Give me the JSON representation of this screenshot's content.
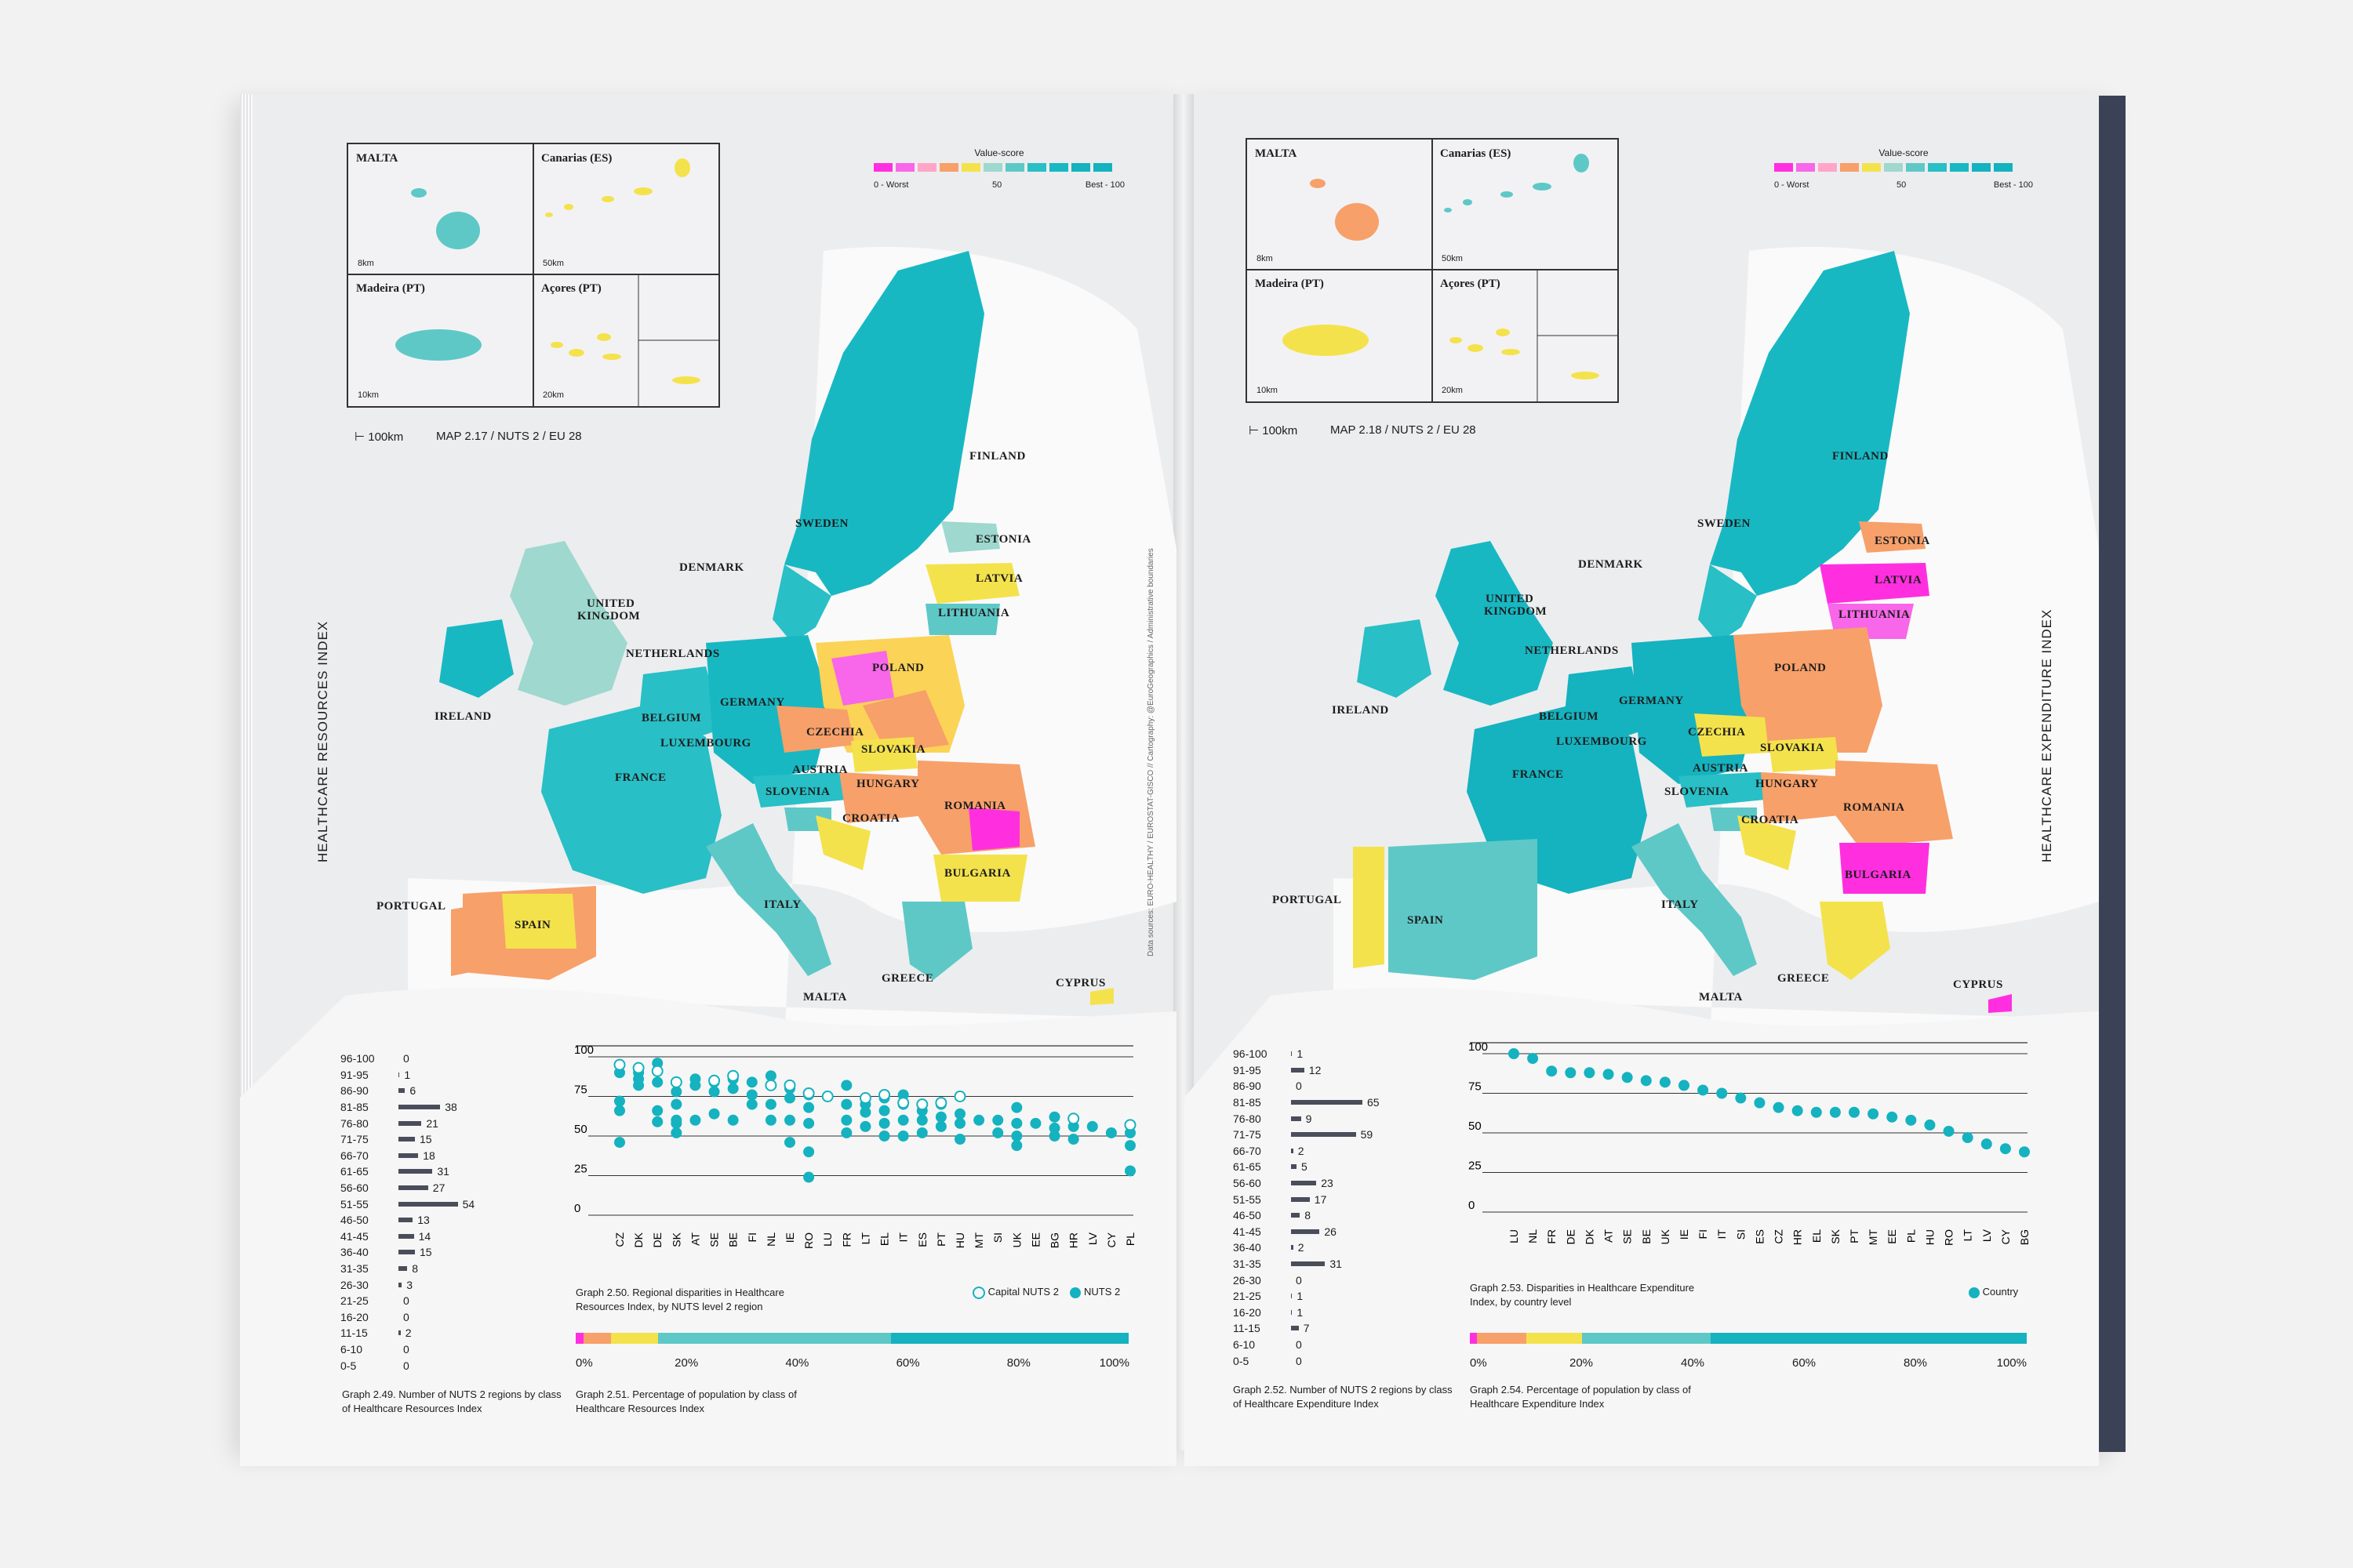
{
  "scale": {
    "colors": [
      "#ff2fe0",
      "#f866e9",
      "#ffa6c8",
      "#fbd356",
      "#f7a06a",
      "#f4e24c",
      "#9ed8cf",
      "#5ec8c7",
      "#28bfc6",
      "#18b8c3",
      "#15b2bf"
    ],
    "worst_label": "0 - Worst",
    "mid_label": "50",
    "best_label": "Best - 100",
    "title": "Value-score"
  },
  "left": {
    "title": "HEALTHCARE RESOURCES INDEX",
    "map_caption": "MAP 2.17 / NUTS 2 / EU 28",
    "scale_text": "100km",
    "credit": "Data sources: EURO-HEALTHY / EUROSTAT-GISCO // Cartography: @EuroGeographics / Administrative boundaries",
    "insets": [
      {
        "name": "MALTA",
        "scale": "8km"
      },
      {
        "name": "Canarias (ES)",
        "scale": "50km"
      },
      {
        "name": "Madeira (PT)",
        "scale": "10km"
      },
      {
        "name": "Açores (PT)",
        "scale": "20km"
      }
    ],
    "countries": [
      "FINLAND",
      "SWEDEN",
      "ESTONIA",
      "LATVIA",
      "DENMARK",
      "LITHUANIA",
      "UNITED",
      "KINGDOM",
      "NETHERLANDS",
      "POLAND",
      "IRELAND",
      "GERMANY",
      "BELGIUM",
      "LUXEMBOURG",
      "CZECHIA",
      "SLOVAKIA",
      "FRANCE",
      "AUSTRIA",
      "HUNGARY",
      "SLOVENIA",
      "ROMANIA",
      "CROATIA",
      "BULGARIA",
      "PORTUGAL",
      "SPAIN",
      "ITALY",
      "GREECE",
      "MALTA",
      "CYPRUS"
    ],
    "hist": {
      "labels": [
        "96-100",
        "91-95",
        "86-90",
        "81-85",
        "76-80",
        "71-75",
        "66-70",
        "61-65",
        "56-60",
        "51-55",
        "46-50",
        "41-45",
        "36-40",
        "31-35",
        "26-30",
        "21-25",
        "16-20",
        "11-15",
        "6-10",
        "0-5"
      ],
      "values": [
        0,
        1,
        6,
        38,
        21,
        15,
        18,
        31,
        27,
        54,
        13,
        14,
        15,
        8,
        3,
        0,
        0,
        2,
        0,
        0
      ],
      "caption": "Graph 2.49. Number of NUTS 2 regions by class of Healthcare Resources Index"
    },
    "chart_data": {
      "type": "scatter",
      "categories": [
        "CZ",
        "DK",
        "DE",
        "SK",
        "AT",
        "SE",
        "BE",
        "FI",
        "NL",
        "IE",
        "RO",
        "LU",
        "FR",
        "LT",
        "EL",
        "IT",
        "ES",
        "PT",
        "HU",
        "MT",
        "SI",
        "UK",
        "EE",
        "BG",
        "HR",
        "LV",
        "CY",
        "PL"
      ],
      "series": [
        {
          "name": "Capital NUTS 2",
          "values": [
            95,
            93,
            91,
            84,
            null,
            85,
            88,
            null,
            82,
            82,
            77,
            75,
            null,
            74,
            76,
            71,
            70,
            71,
            75,
            null,
            null,
            null,
            null,
            null,
            61,
            null,
            null,
            57
          ]
        },
        {
          "name": "NUTS 2",
          "values": [
            [
              90,
              72,
              66,
              46
            ],
            [
              90,
              86,
              82
            ],
            [
              96,
              84,
              66,
              59
            ],
            [
              78,
              70,
              60,
              58,
              52
            ],
            [
              86,
              82,
              60
            ],
            [
              84,
              78,
              64
            ],
            [
              86,
              80,
              60
            ],
            [
              84,
              76,
              70
            ],
            [
              88,
              82,
              70,
              60
            ],
            [
              80,
              74,
              60,
              46
            ],
            [
              76,
              68,
              58,
              40,
              24
            ],
            [
              75
            ],
            [
              82,
              70,
              60,
              52
            ],
            [
              70,
              65,
              56
            ],
            [
              74,
              66,
              58,
              50
            ],
            [
              76,
              70,
              60,
              50
            ],
            [
              70,
              66,
              60,
              52
            ],
            [
              70,
              62,
              56
            ],
            [
              64,
              58,
              48
            ],
            [
              60
            ],
            [
              60,
              52
            ],
            [
              68,
              58,
              50,
              44
            ],
            [
              58
            ],
            [
              62,
              55,
              50
            ],
            [
              56,
              48
            ],
            [
              56
            ],
            [
              52
            ],
            [
              52,
              44,
              28
            ]
          ]
        }
      ],
      "ylim": [
        0,
        100
      ],
      "yticks": [
        0,
        25,
        50,
        75,
        100
      ],
      "caption": "Graph 2.50. Regional disparities in Healthcare Resources Index, by NUTS level 2 region",
      "legend_capital": "Capital NUTS 2",
      "legend_nuts": "NUTS 2"
    },
    "popbar": {
      "segments": [
        [
          0.014,
          "#ff2fe0"
        ],
        [
          0.05,
          "#f7a06a"
        ],
        [
          0.085,
          "#f4e24c"
        ],
        [
          0.42,
          "#5ec8c7"
        ],
        [
          0.43,
          "#15b2bf"
        ]
      ],
      "ticks": [
        "0%",
        "20%",
        "40%",
        "60%",
        "80%",
        "100%"
      ],
      "caption": "Graph 2.51. Percentage of population by class of Healthcare Resources Index"
    }
  },
  "right": {
    "title": "HEALTHCARE EXPENDITURE INDEX",
    "map_caption": "MAP 2.18 / NUTS 2 / EU 28",
    "scale_text": "100km",
    "insets": [
      {
        "name": "MALTA",
        "scale": "8km"
      },
      {
        "name": "Canarias (ES)",
        "scale": "50km"
      },
      {
        "name": "Madeira (PT)",
        "scale": "10km"
      },
      {
        "name": "Açores (PT)",
        "scale": "20km"
      }
    ],
    "countries": [
      "FINLAND",
      "SWEDEN",
      "ESTONIA",
      "LATVIA",
      "DENMARK",
      "LITHUANIA",
      "UNITED",
      "KINGDOM",
      "NETHERLANDS",
      "POLAND",
      "IRELAND",
      "GERMANY",
      "BELGIUM",
      "LUXEMBOURG",
      "CZECHIA",
      "SLOVAKIA",
      "FRANCE",
      "AUSTRIA",
      "HUNGARY",
      "SLOVENIA",
      "ROMANIA",
      "CROATIA",
      "BULGARIA",
      "PORTUGAL",
      "SPAIN",
      "ITALY",
      "GREECE",
      "MALTA",
      "CYPRUS"
    ],
    "hist": {
      "labels": [
        "96-100",
        "91-95",
        "86-90",
        "81-85",
        "76-80",
        "71-75",
        "66-70",
        "61-65",
        "56-60",
        "51-55",
        "46-50",
        "41-45",
        "36-40",
        "31-35",
        "26-30",
        "21-25",
        "16-20",
        "11-15",
        "6-10",
        "0-5"
      ],
      "values": [
        1,
        12,
        0,
        65,
        9,
        59,
        2,
        5,
        23,
        17,
        8,
        26,
        2,
        31,
        0,
        1,
        1,
        7,
        0,
        0
      ],
      "caption": "Graph 2.52. Number of NUTS 2 regions by class of Healthcare Expenditure Index"
    },
    "chart_data": {
      "type": "scatter",
      "categories": [
        "LU",
        "NL",
        "FR",
        "DE",
        "DK",
        "AT",
        "SE",
        "BE",
        "UK",
        "IE",
        "FI",
        "IT",
        "SI",
        "ES",
        "CZ",
        "HR",
        "EL",
        "SK",
        "PT",
        "MT",
        "EE",
        "PL",
        "HU",
        "RO",
        "LT",
        "LV",
        "CY",
        "BG"
      ],
      "series": [
        {
          "name": "Country",
          "values": [
            100,
            97,
            89,
            88,
            88,
            87,
            85,
            83,
            82,
            80,
            77,
            75,
            72,
            69,
            66,
            64,
            63,
            63,
            63,
            62,
            60,
            58,
            55,
            51,
            47,
            43,
            40,
            38
          ]
        }
      ],
      "ylim": [
        0,
        100
      ],
      "yticks": [
        0,
        25,
        50,
        75,
        100
      ],
      "caption": "Graph 2.53. Disparities in Healthcare Expenditure Index, by country level",
      "legend": "Country"
    },
    "popbar": {
      "segments": [
        [
          0.012,
          "#ff2fe0"
        ],
        [
          0.09,
          "#f7a06a"
        ],
        [
          0.1,
          "#f4e24c"
        ],
        [
          0.23,
          "#5ec8c7"
        ],
        [
          0.568,
          "#15b2bf"
        ]
      ],
      "ticks": [
        "0%",
        "20%",
        "40%",
        "60%",
        "80%",
        "100%"
      ],
      "caption": "Graph 2.54. Percentage of population by class of Healthcare Expenditure Index"
    }
  }
}
